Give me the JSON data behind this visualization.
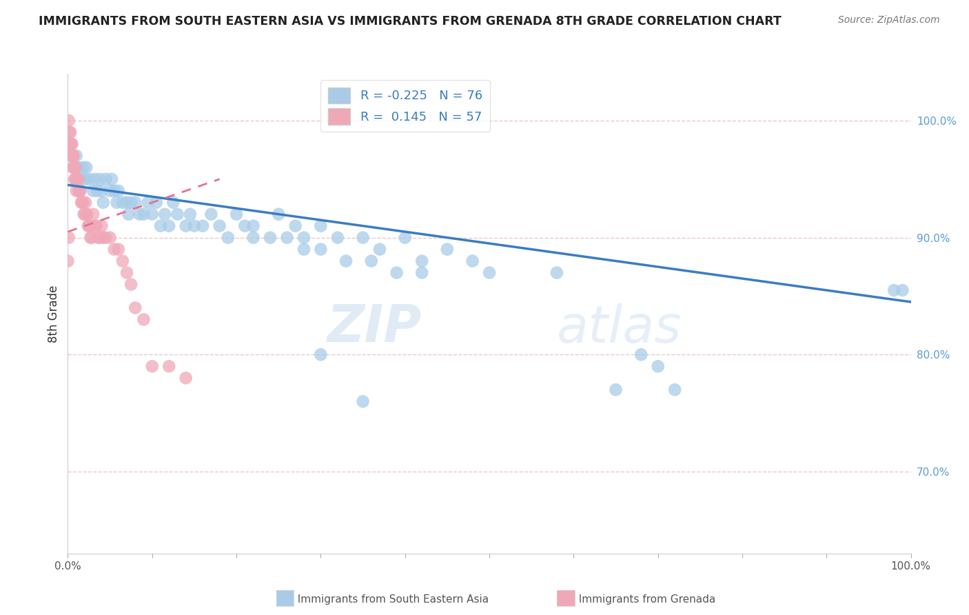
{
  "title": "IMMIGRANTS FROM SOUTH EASTERN ASIA VS IMMIGRANTS FROM GRENADA 8TH GRADE CORRELATION CHART",
  "source": "Source: ZipAtlas.com",
  "ylabel": "8th Grade",
  "xlim": [
    0.0,
    1.0
  ],
  "ylim": [
    0.63,
    1.04
  ],
  "blue_R": -0.225,
  "blue_N": 76,
  "pink_R": 0.145,
  "pink_N": 57,
  "blue_color": "#A8CCE8",
  "pink_color": "#F0A8B8",
  "blue_line_color": "#3A7CC2",
  "pink_line_color": "#E87090",
  "background_color": "#FFFFFF",
  "grid_color": "#F0D8D8",
  "watermark_zip": "ZIP",
  "watermark_atlas": "atlas",
  "blue_line_x0": 0.0,
  "blue_line_y0": 0.945,
  "blue_line_x1": 1.0,
  "blue_line_y1": 0.845,
  "pink_line_x0": 0.0,
  "pink_line_y0": 0.905,
  "pink_line_x1": 0.18,
  "pink_line_y1": 0.95,
  "blue_scatter_x": [
    0.005,
    0.008,
    0.01,
    0.012,
    0.015,
    0.018,
    0.02,
    0.022,
    0.025,
    0.03,
    0.032,
    0.035,
    0.038,
    0.04,
    0.042,
    0.045,
    0.05,
    0.052,
    0.055,
    0.058,
    0.06,
    0.065,
    0.07,
    0.072,
    0.075,
    0.08,
    0.085,
    0.09,
    0.095,
    0.1,
    0.105,
    0.11,
    0.115,
    0.12,
    0.125,
    0.13,
    0.14,
    0.145,
    0.15,
    0.16,
    0.17,
    0.18,
    0.19,
    0.2,
    0.21,
    0.22,
    0.25,
    0.27,
    0.28,
    0.3,
    0.32,
    0.35,
    0.37,
    0.4,
    0.42,
    0.45,
    0.48,
    0.5,
    0.22,
    0.24,
    0.26,
    0.28,
    0.3,
    0.33,
    0.36,
    0.39,
    0.42,
    0.58,
    0.65,
    0.72,
    0.98,
    0.99,
    0.68,
    0.7,
    0.3,
    0.35
  ],
  "blue_scatter_y": [
    0.97,
    0.96,
    0.97,
    0.96,
    0.95,
    0.96,
    0.95,
    0.96,
    0.95,
    0.94,
    0.95,
    0.94,
    0.95,
    0.94,
    0.93,
    0.95,
    0.94,
    0.95,
    0.94,
    0.93,
    0.94,
    0.93,
    0.93,
    0.92,
    0.93,
    0.93,
    0.92,
    0.92,
    0.93,
    0.92,
    0.93,
    0.91,
    0.92,
    0.91,
    0.93,
    0.92,
    0.91,
    0.92,
    0.91,
    0.91,
    0.92,
    0.91,
    0.9,
    0.92,
    0.91,
    0.9,
    0.92,
    0.91,
    0.9,
    0.91,
    0.9,
    0.9,
    0.89,
    0.9,
    0.88,
    0.89,
    0.88,
    0.87,
    0.91,
    0.9,
    0.9,
    0.89,
    0.89,
    0.88,
    0.88,
    0.87,
    0.87,
    0.87,
    0.77,
    0.77,
    0.855,
    0.855,
    0.8,
    0.79,
    0.8,
    0.76
  ],
  "pink_scatter_x": [
    0.001,
    0.002,
    0.003,
    0.003,
    0.004,
    0.004,
    0.005,
    0.005,
    0.006,
    0.006,
    0.007,
    0.007,
    0.008,
    0.008,
    0.009,
    0.009,
    0.01,
    0.01,
    0.011,
    0.012,
    0.013,
    0.014,
    0.015,
    0.016,
    0.017,
    0.018,
    0.019,
    0.02,
    0.021,
    0.022,
    0.023,
    0.024,
    0.025,
    0.026,
    0.027,
    0.028,
    0.03,
    0.032,
    0.034,
    0.036,
    0.038,
    0.04,
    0.042,
    0.045,
    0.05,
    0.055,
    0.06,
    0.065,
    0.07,
    0.075,
    0.08,
    0.09,
    0.1,
    0.12,
    0.14,
    0.0,
    0.001
  ],
  "pink_scatter_y": [
    1.0,
    0.99,
    0.99,
    0.98,
    0.98,
    0.97,
    0.98,
    0.97,
    0.97,
    0.96,
    0.97,
    0.96,
    0.96,
    0.95,
    0.96,
    0.95,
    0.95,
    0.94,
    0.95,
    0.95,
    0.94,
    0.94,
    0.94,
    0.93,
    0.93,
    0.93,
    0.92,
    0.92,
    0.93,
    0.92,
    0.92,
    0.91,
    0.91,
    0.91,
    0.9,
    0.9,
    0.92,
    0.91,
    0.91,
    0.9,
    0.9,
    0.91,
    0.9,
    0.9,
    0.9,
    0.89,
    0.89,
    0.88,
    0.87,
    0.86,
    0.84,
    0.83,
    0.79,
    0.79,
    0.78,
    0.88,
    0.9
  ]
}
